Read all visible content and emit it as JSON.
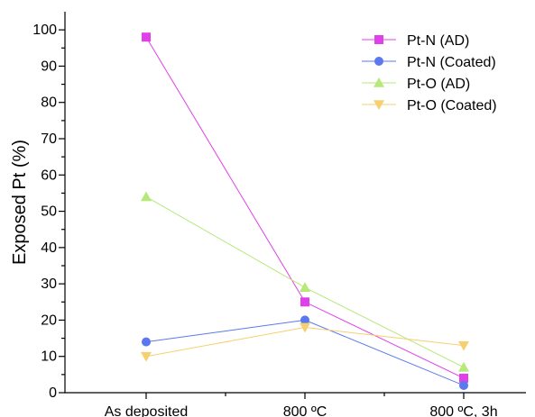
{
  "chart_data": {
    "type": "line",
    "title": "",
    "xlabel": "",
    "ylabel": "Exposed Pt (%)",
    "categories": [
      "As deposited",
      "800 ºC",
      "800 ºC, 3h"
    ],
    "ylim": [
      0,
      105
    ],
    "yticks": [
      0,
      10,
      20,
      30,
      40,
      50,
      60,
      70,
      80,
      90,
      100
    ],
    "legend_position": "top-right",
    "grid": false,
    "series": [
      {
        "name": "Pt-N (AD)",
        "values": [
          98,
          25,
          4
        ],
        "color": "#e040e8",
        "marker": "square"
      },
      {
        "name": "Pt-N (Coated)",
        "values": [
          14,
          20,
          2
        ],
        "color": "#5b78f0",
        "marker": "circle"
      },
      {
        "name": "Pt-O (AD)",
        "values": [
          54,
          29,
          7
        ],
        "color": "#b6e87a",
        "marker": "triangle-up"
      },
      {
        "name": "Pt-O (Coated)",
        "values": [
          10,
          18,
          13
        ],
        "color": "#f6cf70",
        "marker": "triangle-down"
      }
    ]
  }
}
